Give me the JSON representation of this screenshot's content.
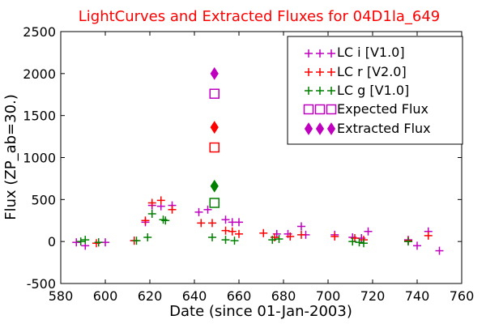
{
  "chart_data": {
    "type": "scatter",
    "title": "LightCurves and Extracted Fluxes for 04D1la_649",
    "xlabel": "Date (since 01-Jan-2003)",
    "ylabel": "Flux (ZP_ab=30.)",
    "xlim": [
      580,
      760
    ],
    "ylim": [
      -500,
      2500
    ],
    "x_ticks": [
      580,
      600,
      620,
      640,
      660,
      680,
      700,
      720,
      740,
      760
    ],
    "x_tick_labels": [
      "580",
      "600",
      "620",
      "640",
      "660",
      "680",
      "700",
      "720",
      "740",
      "760"
    ],
    "y_ticks": [
      -500,
      0,
      500,
      1000,
      1500,
      2000,
      2500
    ],
    "y_tick_labels": [
      "-500",
      "0",
      "500",
      "1000",
      "1500",
      "2000",
      "2500"
    ],
    "grid": false,
    "legend_position": "top-right",
    "colors": {
      "title": "#ff0000",
      "lc_i": "#bf00bf",
      "lc_r": "#ff0000",
      "lc_g": "#008000"
    },
    "series": [
      {
        "name": "LC i [V1.0]",
        "marker": "plus",
        "color": "#bf00bf",
        "points": [
          [
            587,
            -10
          ],
          [
            591,
            -50
          ],
          [
            597,
            -10
          ],
          [
            600,
            -10
          ],
          [
            613,
            10
          ],
          [
            618,
            230
          ],
          [
            621,
            430
          ],
          [
            625,
            420
          ],
          [
            630,
            430
          ],
          [
            642,
            350
          ],
          [
            646,
            380
          ],
          [
            654,
            260
          ],
          [
            657,
            230
          ],
          [
            660,
            230
          ],
          [
            677,
            90
          ],
          [
            682,
            90
          ],
          [
            688,
            180
          ],
          [
            690,
            80
          ],
          [
            703,
            80
          ],
          [
            711,
            50
          ],
          [
            715,
            40
          ],
          [
            718,
            120
          ],
          [
            736,
            20
          ],
          [
            740,
            -50
          ],
          [
            745,
            120
          ],
          [
            750,
            -110
          ]
        ]
      },
      {
        "name": "LC r [V2.0]",
        "marker": "plus",
        "color": "#ff0000",
        "points": [
          [
            596,
            -20
          ],
          [
            613,
            10
          ],
          [
            618,
            250
          ],
          [
            621,
            460
          ],
          [
            625,
            490
          ],
          [
            630,
            380
          ],
          [
            643,
            220
          ],
          [
            648,
            220
          ],
          [
            654,
            130
          ],
          [
            657,
            120
          ],
          [
            660,
            90
          ],
          [
            671,
            100
          ],
          [
            676,
            50
          ],
          [
            683,
            60
          ],
          [
            688,
            80
          ],
          [
            703,
            60
          ],
          [
            712,
            40
          ],
          [
            716,
            20
          ],
          [
            736,
            10
          ],
          [
            745,
            70
          ]
        ]
      },
      {
        "name": "LC g [V1.0]",
        "marker": "plus",
        "color": "#008000",
        "points": [
          [
            589,
            0
          ],
          [
            591,
            20
          ],
          [
            597,
            -10
          ],
          [
            614,
            10
          ],
          [
            619,
            50
          ],
          [
            621,
            330
          ],
          [
            626,
            260
          ],
          [
            627,
            250
          ],
          [
            648,
            50
          ],
          [
            654,
            20
          ],
          [
            658,
            10
          ],
          [
            675,
            20
          ],
          [
            678,
            30
          ],
          [
            711,
            0
          ],
          [
            714,
            -10
          ],
          [
            716,
            -20
          ],
          [
            736,
            0
          ]
        ]
      },
      {
        "name": "Expected Flux",
        "marker": "open-square",
        "points": [
          [
            649,
            1760,
            "#bf00bf"
          ],
          [
            649,
            1120,
            "#ff0000"
          ],
          [
            649,
            460,
            "#008000"
          ]
        ]
      },
      {
        "name": "Extracted Flux",
        "marker": "filled-diamond",
        "points": [
          [
            649,
            2000,
            "#bf00bf"
          ],
          [
            649,
            1360,
            "#ff0000"
          ],
          [
            649,
            660,
            "#008000"
          ]
        ]
      }
    ]
  }
}
